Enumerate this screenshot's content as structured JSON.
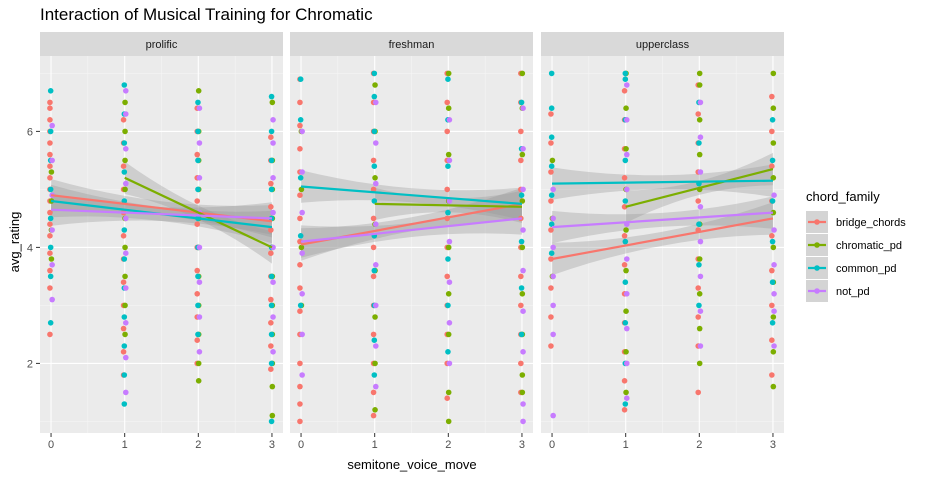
{
  "chart_data": {
    "type": "scatter",
    "title": "Interaction of Musical Training for Chromatic",
    "xlabel": "semitone_voice_move",
    "ylabel": "avg_rating",
    "x_ticks": [
      0,
      1,
      2,
      3
    ],
    "y_ticks": [
      2,
      4,
      6
    ],
    "xlim": [
      -0.15,
      3.15
    ],
    "ylim": [
      0.8,
      7.3
    ],
    "grid": true,
    "legend": {
      "title": "chord_family",
      "position": "right",
      "entries": [
        {
          "name": "bridge_chords",
          "color": "#F8766D"
        },
        {
          "name": "chromatic_pd",
          "color": "#7CAE00"
        },
        {
          "name": "common_pd",
          "color": "#00BFC4"
        },
        {
          "name": "not_pd",
          "color": "#C77CFF"
        }
      ]
    },
    "panels": [
      {
        "label": "prolific",
        "fits": [
          {
            "series": "bridge_chords",
            "x": [
              0,
              3
            ],
            "y": [
              4.9,
              4.45
            ]
          },
          {
            "series": "chromatic_pd",
            "x": [
              1,
              3
            ],
            "y": [
              5.2,
              4.0
            ]
          },
          {
            "series": "common_pd",
            "x": [
              0,
              3
            ],
            "y": [
              4.8,
              4.35
            ]
          },
          {
            "series": "not_pd",
            "x": [
              0,
              3
            ],
            "y": [
              4.65,
              4.5
            ]
          }
        ],
        "points": {
          "bridge_chords": {
            "0": [
              2.5,
              3.3,
              3.6,
              3.9,
              4.2,
              4.4,
              4.6,
              4.8,
              5.0,
              5.2,
              5.4,
              5.6,
              5.8,
              6.0,
              6.2,
              6.4,
              6.5
            ],
            "1": [
              1.8,
              2.2,
              2.6,
              3.0,
              3.4,
              3.8,
              4.2,
              4.6,
              5.0,
              5.4,
              5.8,
              6.2
            ],
            "2": [
              2.0,
              2.4,
              2.8,
              3.2,
              3.6,
              4.0,
              4.4,
              4.8,
              5.2,
              5.6,
              6.0,
              6.4
            ],
            "3": [
              1.9,
              2.3,
              2.7,
              3.1,
              3.5,
              3.9,
              4.3,
              4.7,
              5.1,
              5.5,
              5.9
            ]
          },
          "chromatic_pd": {
            "0": [
              3.8,
              4.3,
              4.8,
              5.3
            ],
            "1": [
              2.5,
              3.0,
              3.5,
              4.0,
              4.5,
              5.0,
              5.5,
              6.0,
              6.5
            ],
            "2": [
              1.7,
              2.0,
              2.5,
              3.0,
              3.5,
              4.0,
              4.5,
              5.0,
              5.5,
              6.0,
              6.7
            ],
            "3": [
              1.1,
              1.6,
              2.0,
              2.5,
              3.0,
              3.5,
              4.0,
              4.5,
              5.0,
              5.5,
              6.5
            ]
          },
          "common_pd": {
            "0": [
              2.7,
              3.5,
              4.0,
              4.5,
              5.0,
              5.5,
              6.0,
              6.7
            ],
            "1": [
              1.3,
              1.8,
              2.3,
              2.8,
              3.3,
              3.8,
              4.3,
              4.8,
              5.3,
              5.8,
              6.3,
              6.8
            ],
            "2": [
              2.5,
              3.0,
              3.5,
              4.0,
              4.5,
              5.0,
              5.5,
              6.0,
              6.5
            ],
            "3": [
              1.0,
              2.0,
              2.5,
              3.0,
              3.5,
              4.0,
              4.5,
              5.0,
              5.5,
              6.0,
              6.6
            ]
          },
          "not_pd": {
            "0": [
              3.1,
              3.7,
              4.3,
              4.9,
              5.5,
              6.1
            ],
            "1": [
              1.5,
              2.1,
              2.7,
              3.3,
              3.9,
              4.5,
              5.1,
              5.7,
              6.3,
              6.7
            ],
            "2": [
              2.2,
              2.8,
              3.4,
              4.0,
              4.6,
              5.2,
              5.8,
              6.4
            ],
            "3": [
              2.2,
              2.8,
              3.4,
              4.0,
              4.6,
              5.2,
              5.8,
              6.2
            ]
          }
        }
      },
      {
        "label": "freshman",
        "fits": [
          {
            "series": "bridge_chords",
            "x": [
              0,
              3
            ],
            "y": [
              4.05,
              4.75
            ]
          },
          {
            "series": "chromatic_pd",
            "x": [
              1,
              3
            ],
            "y": [
              4.75,
              4.7
            ]
          },
          {
            "series": "common_pd",
            "x": [
              0,
              3
            ],
            "y": [
              5.05,
              4.75
            ]
          },
          {
            "series": "not_pd",
            "x": [
              0,
              3
            ],
            "y": [
              4.1,
              4.5
            ]
          }
        ],
        "points": {
          "bridge_chords": {
            "0": [
              1.0,
              1.3,
              1.6,
              2.0,
              2.5,
              2.9,
              3.3,
              3.7,
              4.1,
              4.5,
              4.9,
              5.3,
              5.7,
              6.1,
              6.5,
              6.9
            ],
            "1": [
              1.1,
              1.5,
              2.0,
              2.5,
              3.0,
              3.5,
              4.0,
              4.5,
              5.0,
              5.5,
              6.0,
              6.5,
              7.0
            ],
            "2": [
              1.4,
              2.0,
              2.5,
              3.0,
              3.5,
              4.0,
              4.5,
              5.0,
              5.5,
              6.0,
              6.5,
              7.0
            ],
            "3": [
              1.5,
              2.0,
              2.5,
              3.0,
              3.5,
              4.0,
              4.5,
              5.0,
              5.5,
              6.0,
              6.5,
              7.0
            ]
          },
          "chromatic_pd": {
            "0": [
              3.0,
              4.0,
              5.0,
              6.0
            ],
            "1": [
              1.2,
              2.0,
              2.8,
              3.6,
              4.4,
              5.2,
              6.0,
              6.8
            ],
            "2": [
              1.0,
              1.5,
              2.5,
              3.2,
              4.0,
              4.8,
              5.6,
              6.4,
              7.0
            ],
            "3": [
              1.5,
              1.8,
              2.5,
              3.2,
              4.0,
              4.8,
              5.6,
              6.4,
              7.0
            ]
          },
          "common_pd": {
            "0": [
              3.0,
              4.2,
              5.2,
              6.2,
              6.9
            ],
            "1": [
              1.8,
              2.4,
              3.0,
              3.6,
              4.2,
              4.8,
              5.4,
              6.0,
              6.6,
              7.0
            ],
            "2": [
              2.2,
              3.0,
              3.8,
              4.6,
              5.4,
              6.2,
              6.9
            ],
            "3": [
              2.5,
              3.3,
              4.1,
              4.9,
              5.7,
              6.5
            ]
          },
          "not_pd": {
            "0": [
              1.8,
              2.5,
              3.2,
              3.9,
              4.6,
              5.3,
              6.0
            ],
            "1": [
              1.6,
              2.3,
              3.0,
              3.7,
              4.4,
              5.1,
              5.8,
              6.5
            ],
            "2": [
              2.0,
              2.7,
              3.4,
              4.1,
              4.8,
              5.5,
              6.2
            ],
            "3": [
              1.0,
              1.3,
              2.2,
              2.9,
              3.6,
              4.3,
              5.0,
              5.7,
              6.4
            ]
          }
        }
      },
      {
        "label": "upperclass",
        "fits": [
          {
            "series": "bridge_chords",
            "x": [
              0,
              3
            ],
            "y": [
              3.8,
              4.5
            ]
          },
          {
            "series": "chromatic_pd",
            "x": [
              1,
              3
            ],
            "y": [
              4.7,
              5.35
            ]
          },
          {
            "series": "common_pd",
            "x": [
              0,
              3
            ],
            "y": [
              5.1,
              5.15
            ]
          },
          {
            "series": "not_pd",
            "x": [
              0,
              3
            ],
            "y": [
              4.35,
              4.6
            ]
          }
        ],
        "points": {
          "bridge_chords": {
            "0": [
              2.3,
              2.8,
              3.3,
              3.8,
              4.3,
              4.8,
              5.3,
              5.8,
              6.3
            ],
            "1": [
              1.2,
              1.7,
              2.2,
              2.7,
              3.2,
              3.7,
              4.2,
              4.7,
              5.2,
              5.7,
              6.2,
              6.7
            ],
            "2": [
              1.5,
              2.3,
              2.8,
              3.3,
              3.8,
              4.3,
              4.8,
              5.3,
              5.8,
              6.3,
              6.8
            ],
            "3": [
              1.8,
              2.4,
              3.0,
              3.6,
              4.2,
              4.8,
              5.4,
              6.0,
              6.6
            ]
          },
          "chromatic_pd": {
            "0": [
              3.5,
              4.5,
              5.5
            ],
            "1": [
              1.5,
              2.2,
              2.9,
              3.6,
              4.3,
              5.0,
              5.7,
              6.4,
              7.0
            ],
            "2": [
              2.0,
              2.6,
              3.2,
              3.8,
              4.4,
              5.0,
              5.6,
              6.2,
              6.8,
              7.0
            ],
            "3": [
              1.6,
              2.2,
              2.8,
              3.4,
              4.0,
              4.6,
              5.2,
              5.8,
              6.4,
              7.0
            ]
          },
          "common_pd": {
            "0": [
              3.9,
              4.4,
              4.9,
              5.4,
              5.9,
              6.4,
              7.0
            ],
            "1": [
              1.3,
              2.0,
              2.7,
              3.4,
              4.1,
              4.8,
              5.5,
              6.2,
              6.9,
              7.0
            ],
            "2": [
              3.0,
              3.7,
              4.4,
              5.1,
              5.8,
              6.5
            ],
            "3": [
              2.7,
              3.4,
              4.1,
              4.8,
              5.5,
              6.2
            ]
          },
          "not_pd": {
            "0": [
              1.1,
              2.5,
              3.0,
              3.5,
              4.0,
              4.5,
              5.0
            ],
            "1": [
              1.4,
              2.0,
              2.6,
              3.2,
              3.8,
              4.4,
              5.0,
              5.6,
              6.2,
              6.8
            ],
            "2": [
              2.3,
              2.9,
              3.5,
              4.1,
              4.7,
              5.3,
              5.9,
              6.5
            ],
            "3": [
              2.3,
              2.9,
              3.2,
              3.7,
              4.3,
              4.9
            ]
          }
        }
      }
    ]
  }
}
